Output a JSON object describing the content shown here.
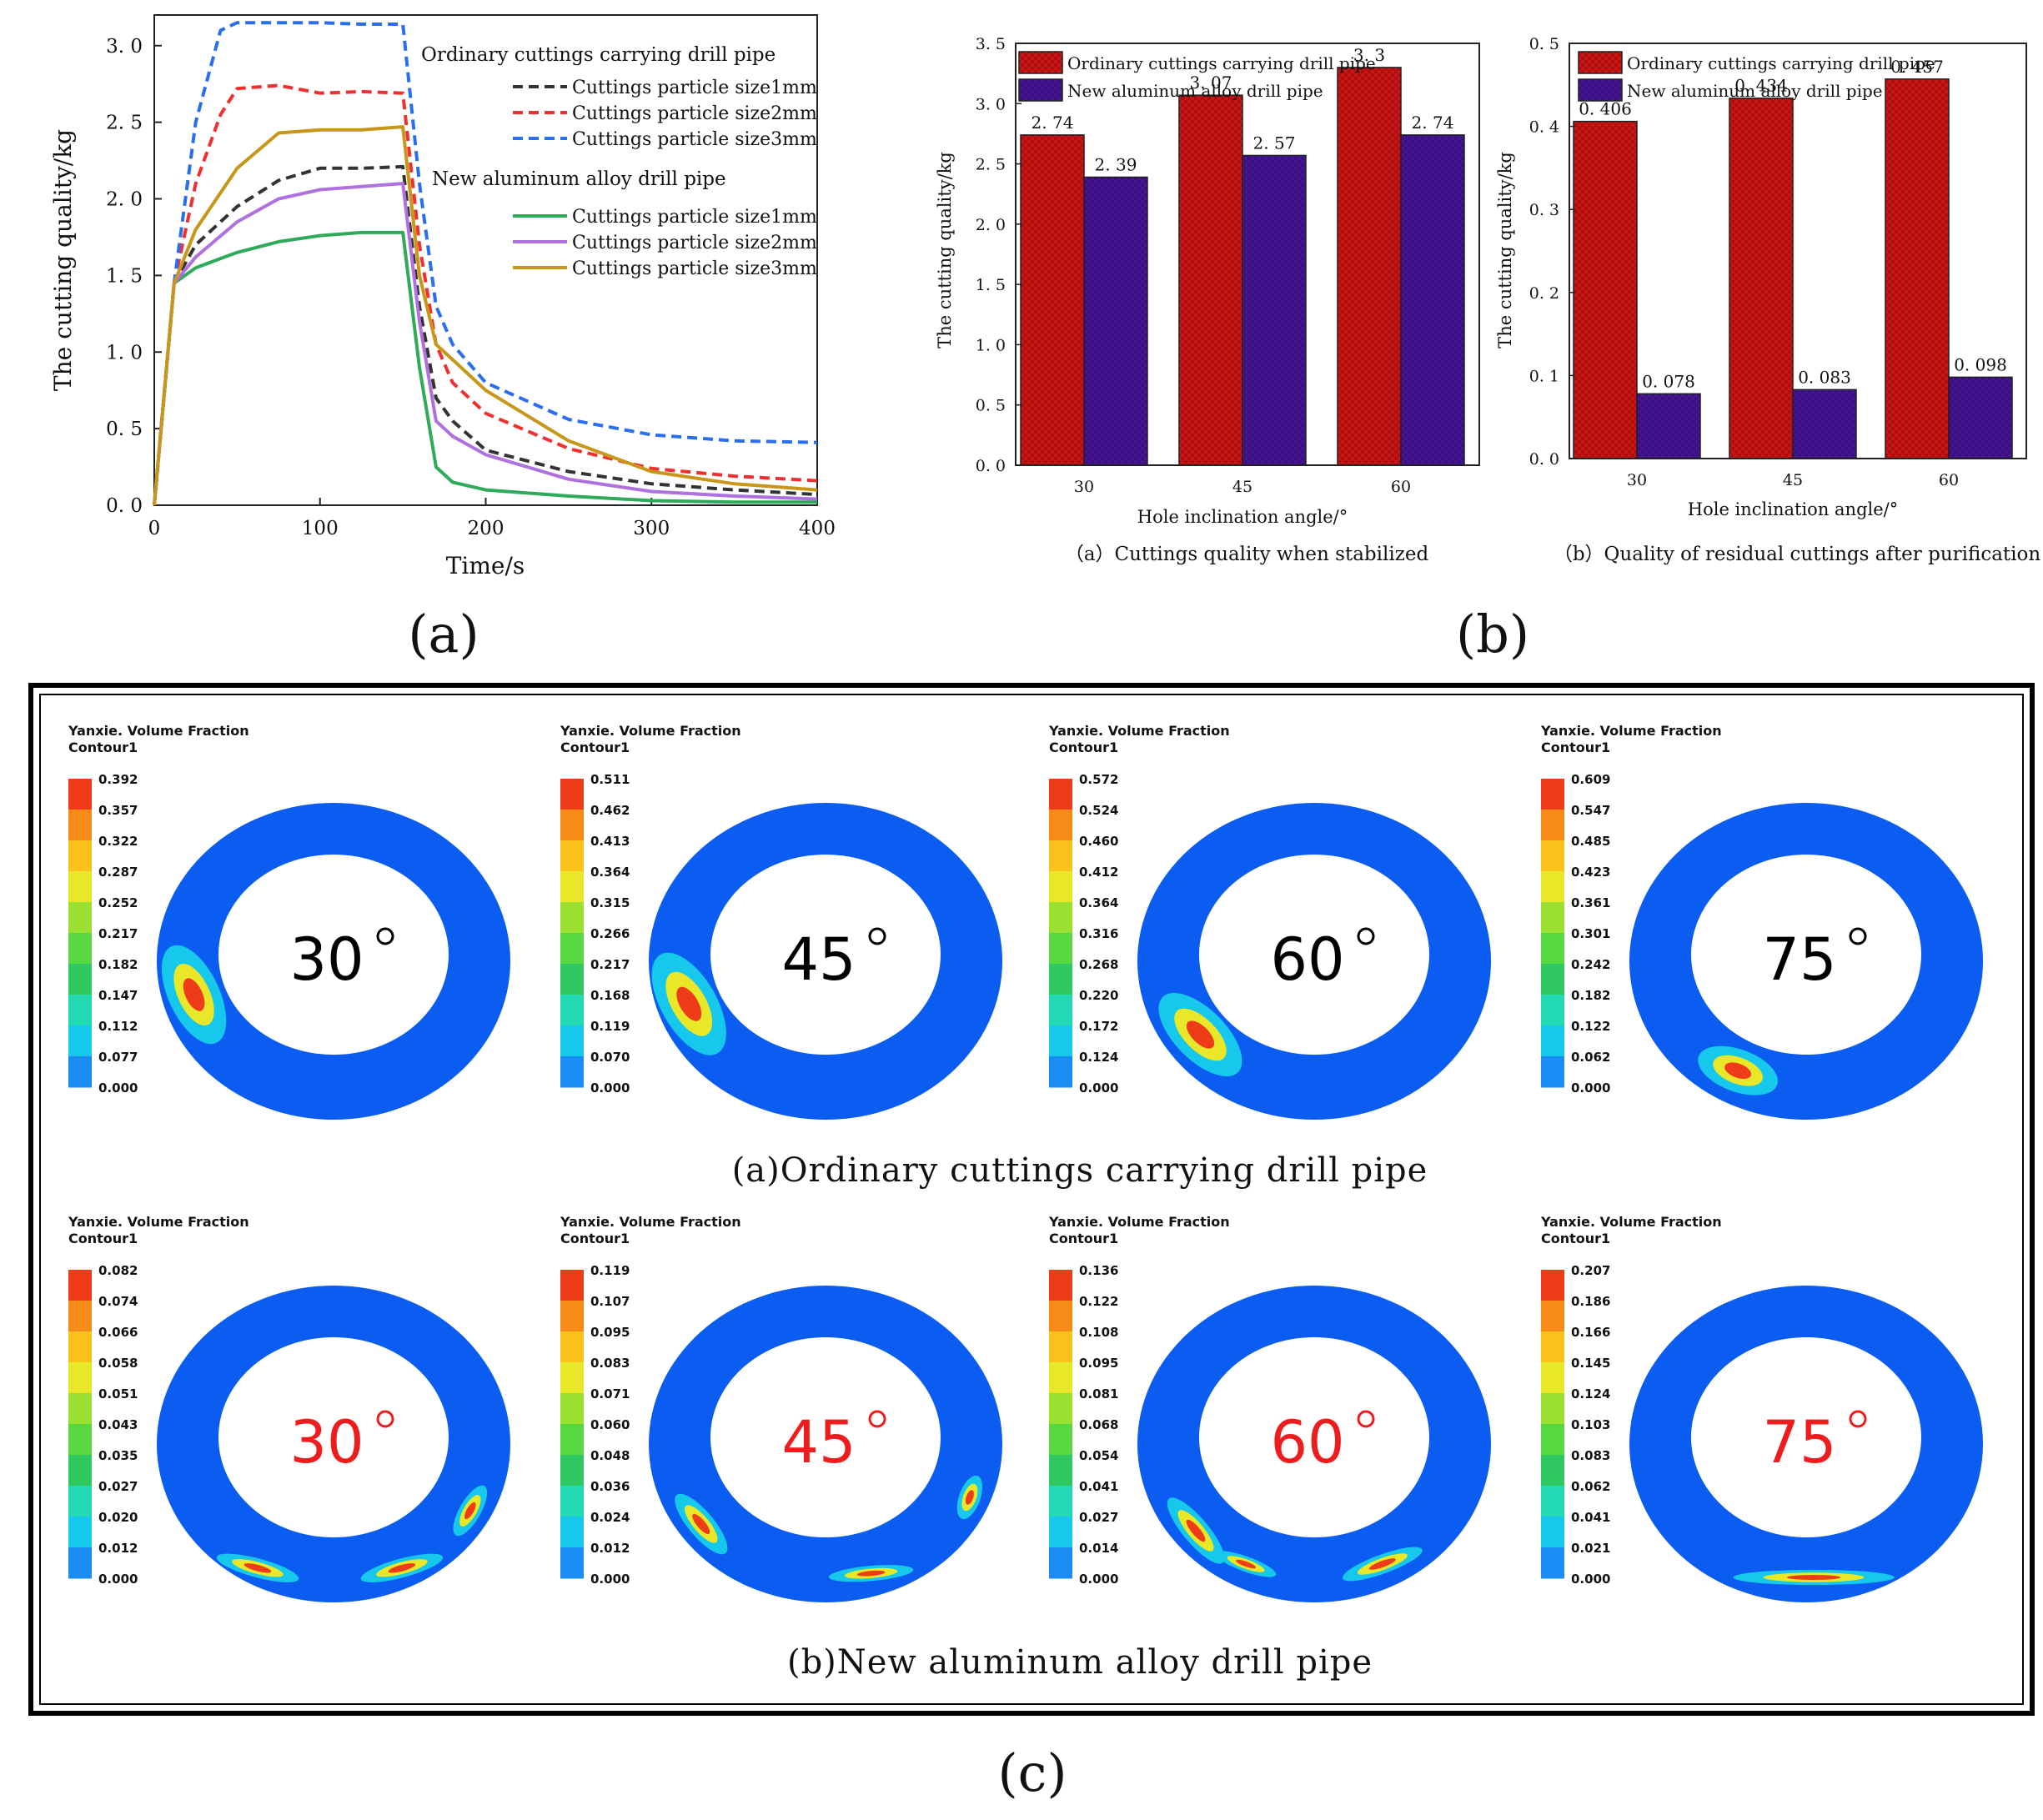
{
  "panel_labels": {
    "a": "(a)",
    "b": "(b)",
    "c": "(c)"
  },
  "colors": {
    "ordinary_1mm": "#333333",
    "ordinary_2mm": "#f03030",
    "ordinary_3mm": "#2a6ef0",
    "new_1mm": "#2eaa5a",
    "new_2mm": "#b070e0",
    "new_3mm": "#c89618",
    "bar_ordinary": "#b30c0c",
    "bar_new": "#3b0f82",
    "contour_base": "#0b5cf0",
    "label_black": "#000000",
    "label_red": "#ee1c1c"
  },
  "chart_data": [
    {
      "id": "line-chart",
      "type": "line",
      "xlabel": "Time/s",
      "ylabel": "The cutting quality/kg",
      "xlim": [
        0,
        400
      ],
      "ylim": [
        0,
        3.2
      ],
      "xticks": [
        "0",
        "100",
        "200",
        "300",
        "400"
      ],
      "yticks": [
        "0. 0",
        "0. 5",
        "1. 0",
        "1. 5",
        "2. 0",
        "2. 5",
        "3. 0"
      ],
      "legend_group_1": "Ordinary cuttings carrying drill pipe",
      "legend_group_2": "New aluminum alloy drill pipe",
      "series": [
        {
          "key": "ordinary_1mm",
          "name": "Cuttings particle size1mm",
          "group": 1,
          "dash": true,
          "x": [
            0,
            12,
            25,
            50,
            75,
            100,
            125,
            150,
            160,
            170,
            180,
            200,
            250,
            300,
            350,
            400
          ],
          "y": [
            0,
            1.45,
            1.7,
            1.95,
            2.12,
            2.2,
            2.2,
            2.21,
            1.3,
            0.7,
            0.55,
            0.36,
            0.22,
            0.14,
            0.1,
            0.07
          ]
        },
        {
          "key": "ordinary_2mm",
          "name": "Cuttings particle size2mm",
          "group": 1,
          "dash": true,
          "x": [
            0,
            12,
            25,
            40,
            50,
            75,
            100,
            125,
            150,
            160,
            170,
            180,
            200,
            250,
            300,
            350,
            400
          ],
          "y": [
            0,
            1.45,
            2.1,
            2.55,
            2.72,
            2.74,
            2.69,
            2.7,
            2.69,
            1.7,
            1.05,
            0.8,
            0.6,
            0.37,
            0.24,
            0.19,
            0.16
          ]
        },
        {
          "key": "ordinary_3mm",
          "name": "Cuttings particle size3mm",
          "group": 1,
          "dash": true,
          "x": [
            0,
            12,
            25,
            40,
            50,
            75,
            100,
            125,
            150,
            160,
            170,
            180,
            200,
            250,
            300,
            350,
            400
          ],
          "y": [
            0,
            1.45,
            2.5,
            3.1,
            3.15,
            3.15,
            3.15,
            3.14,
            3.14,
            2.1,
            1.3,
            1.05,
            0.8,
            0.56,
            0.46,
            0.42,
            0.41
          ]
        },
        {
          "key": "new_1mm",
          "name": "Cuttings particle size1mm",
          "group": 2,
          "dash": false,
          "x": [
            0,
            12,
            25,
            50,
            75,
            100,
            125,
            150,
            160,
            170,
            180,
            200,
            250,
            300,
            350,
            400
          ],
          "y": [
            0,
            1.45,
            1.55,
            1.65,
            1.72,
            1.76,
            1.78,
            1.78,
            0.9,
            0.25,
            0.15,
            0.1,
            0.06,
            0.03,
            0.02,
            0.02
          ]
        },
        {
          "key": "new_2mm",
          "name": "Cuttings particle size2mm",
          "group": 2,
          "dash": false,
          "x": [
            0,
            12,
            25,
            50,
            75,
            100,
            125,
            150,
            160,
            170,
            180,
            200,
            250,
            300,
            350,
            400
          ],
          "y": [
            0,
            1.45,
            1.62,
            1.85,
            2.0,
            2.06,
            2.08,
            2.1,
            1.2,
            0.55,
            0.45,
            0.33,
            0.17,
            0.09,
            0.06,
            0.04
          ]
        },
        {
          "key": "new_3mm",
          "name": "Cuttings particle size3mm",
          "group": 2,
          "dash": false,
          "x": [
            0,
            12,
            25,
            50,
            75,
            100,
            125,
            150,
            160,
            170,
            180,
            200,
            250,
            300,
            350,
            400
          ],
          "y": [
            0,
            1.45,
            1.8,
            2.2,
            2.43,
            2.45,
            2.45,
            2.47,
            1.5,
            1.05,
            0.95,
            0.75,
            0.42,
            0.22,
            0.14,
            0.1
          ]
        }
      ]
    },
    {
      "id": "bar-chart-stabilized",
      "type": "bar",
      "categories": [
        "30",
        "45",
        "60"
      ],
      "series": [
        {
          "name": "Ordinary cuttings carrying drill pipe",
          "values": [
            2.74,
            3.07,
            3.3
          ],
          "labels": [
            "2. 74",
            "3. 07",
            "3. 3"
          ]
        },
        {
          "name": "New aluminum alloy drill pipe",
          "values": [
            2.39,
            2.57,
            2.74
          ],
          "labels": [
            "2. 39",
            "2. 57",
            "2. 74"
          ]
        }
      ],
      "ylim": [
        0,
        3.5
      ],
      "yticks": [
        "0. 0",
        "0. 5",
        "1. 0",
        "1. 5",
        "2. 0",
        "2. 5",
        "3. 0",
        "3. 5"
      ],
      "xlabel": "Hole inclination angle/°",
      "ylabel": "The cutting quality/kg",
      "caption": "（a）Cuttings quality when stabilized"
    },
    {
      "id": "bar-chart-residual",
      "type": "bar",
      "categories": [
        "30",
        "45",
        "60"
      ],
      "series": [
        {
          "name": "Ordinary cuttings carrying drill pipe",
          "values": [
            0.406,
            0.434,
            0.457
          ],
          "labels": [
            "0. 406",
            "0. 434",
            "0. 457"
          ]
        },
        {
          "name": "New aluminum alloy drill pipe",
          "values": [
            0.078,
            0.083,
            0.098
          ],
          "labels": [
            "0. 078",
            "0. 083",
            "0. 098"
          ]
        }
      ],
      "ylim": [
        0,
        0.5
      ],
      "yticks": [
        "0. 0",
        "0. 1",
        "0. 2",
        "0. 3",
        "0. 4",
        "0. 5"
      ],
      "xlabel": "Hole inclination angle/°",
      "ylabel": "The cutting quality/kg",
      "caption": "（b）Quality of residual cuttings after purification"
    }
  ],
  "contour_section": {
    "legend_title_1": "Yanxie. Volume Fraction",
    "legend_title_2": "Contour1",
    "caption_top": "(a)Ordinary cuttings carrying drill pipe",
    "caption_bottom": "(b)New aluminum alloy drill pipe",
    "scale_colors": [
      "#0b5cf0",
      "#1a8cf5",
      "#16c8ec",
      "#22d9b4",
      "#30c860",
      "#58d840",
      "#9ae030",
      "#e8e828",
      "#f8c21a",
      "#f88a18",
      "#ee3c18"
    ],
    "rows": [
      {
        "type": "ordinary",
        "items": [
          {
            "angle": "30",
            "ticks": [
              "0.392",
              "0.357",
              "0.322",
              "0.287",
              "0.252",
              "0.217",
              "0.182",
              "0.147",
              "0.112",
              "0.077",
              "0.000"
            ]
          },
          {
            "angle": "45",
            "ticks": [
              "0.511",
              "0.462",
              "0.413",
              "0.364",
              "0.315",
              "0.266",
              "0.217",
              "0.168",
              "0.119",
              "0.070",
              "0.000"
            ]
          },
          {
            "angle": "60",
            "ticks": [
              "0.572",
              "0.524",
              "0.460",
              "0.412",
              "0.364",
              "0.316",
              "0.268",
              "0.220",
              "0.172",
              "0.124",
              "0.000"
            ]
          },
          {
            "angle": "75",
            "ticks": [
              "0.609",
              "0.547",
              "0.485",
              "0.423",
              "0.361",
              "0.301",
              "0.242",
              "0.182",
              "0.122",
              "0.062",
              "0.000"
            ]
          }
        ]
      },
      {
        "type": "new",
        "items": [
          {
            "angle": "30",
            "ticks": [
              "0.082",
              "0.074",
              "0.066",
              "0.058",
              "0.051",
              "0.043",
              "0.035",
              "0.027",
              "0.020",
              "0.012",
              "0.000"
            ]
          },
          {
            "angle": "45",
            "ticks": [
              "0.119",
              "0.107",
              "0.095",
              "0.083",
              "0.071",
              "0.060",
              "0.048",
              "0.036",
              "0.024",
              "0.012",
              "0.000"
            ]
          },
          {
            "angle": "60",
            "ticks": [
              "0.136",
              "0.122",
              "0.108",
              "0.095",
              "0.081",
              "0.068",
              "0.054",
              "0.041",
              "0.027",
              "0.014",
              "0.000"
            ]
          },
          {
            "angle": "75",
            "ticks": [
              "0.207",
              "0.186",
              "0.166",
              "0.145",
              "0.124",
              "0.103",
              "0.083",
              "0.062",
              "0.041",
              "0.021",
              "0.000"
            ]
          }
        ]
      }
    ]
  }
}
